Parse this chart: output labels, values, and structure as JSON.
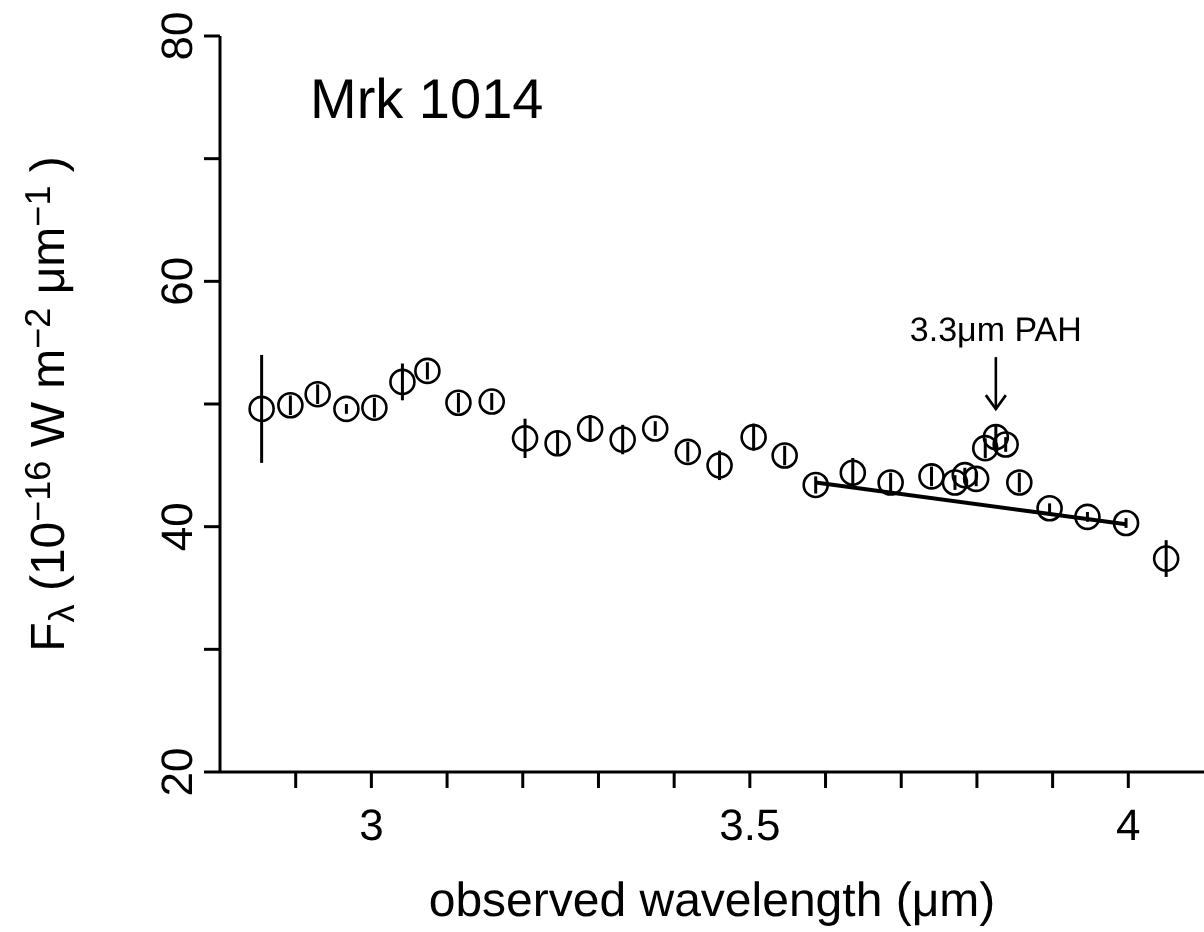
{
  "chart_data": {
    "type": "scatter",
    "title": "Mrk 1014",
    "xlabel": "observed wavelength (μm)",
    "ylabel": "F$_{λ}$ (10$^{−16}$ W m$^{−2}$ μm$^{−1}$)",
    "xlim": [
      2.8,
      4.1
    ],
    "ylim": [
      20,
      80
    ],
    "xticks": [
      {
        "value": 2.9,
        "label": null
      },
      {
        "value": 3,
        "label": "3"
      },
      {
        "value": 3.1,
        "label": null
      },
      {
        "value": 3.2,
        "label": null
      },
      {
        "value": 3.3,
        "label": null
      },
      {
        "value": 3.4,
        "label": null
      },
      3.5,
      {
        "value": 3.6,
        "label": null
      },
      {
        "value": 3.7,
        "label": null
      },
      {
        "value": 3.8,
        "label": null
      },
      {
        "value": 3.9,
        "label": null
      },
      {
        "value": 4,
        "label": "4"
      }
    ],
    "yticks": [
      20,
      {
        "value": 30,
        "label": null
      },
      40,
      {
        "value": 50,
        "label": null
      },
      60,
      {
        "value": 70,
        "label": null
      },
      80
    ],
    "marker": "circle",
    "grid": false,
    "annotations": [
      {
        "text": "3.3μm PAH",
        "x": 3.825,
        "y": 47.3
      }
    ],
    "series": [
      {
        "color": "#000000",
        "x": [
          2.855,
          2.893,
          2.929,
          2.967,
          3.004,
          3.041,
          3.074,
          3.115,
          3.159,
          3.203,
          3.246,
          3.289,
          3.332,
          3.375,
          3.418,
          3.46,
          3.505,
          3.546,
          3.587,
          3.636,
          3.686,
          3.74,
          3.771,
          3.784,
          3.799,
          3.811,
          3.825,
          3.838,
          3.856,
          3.896,
          3.946,
          3.997,
          4.05
        ],
        "values": [
          49.6,
          49.9,
          50.8,
          49.6,
          49.7,
          51.8,
          52.7,
          50.1,
          50.2,
          47.2,
          46.8,
          48.0,
          47.1,
          48.0,
          46.1,
          45.0,
          47.3,
          45.8,
          43.4,
          44.4,
          43.6,
          44.1,
          43.6,
          44.2,
          43.9,
          46.4,
          47.3,
          46.7,
          43.6,
          41.5,
          40.8,
          40.3,
          37.4
        ],
        "errors": [
          4.4,
          0.8,
          0.8,
          0.4,
          0.8,
          1.5,
          0.7,
          0.8,
          0.7,
          1.6,
          1.0,
          1.1,
          1.2,
          0.6,
          0.8,
          1.2,
          1.1,
          0.8,
          0.7,
          1.2,
          0.8,
          0.8,
          0.6,
          0.6,
          0.6,
          0.8,
          0.9,
          0.6,
          0.8,
          0.4,
          0.4,
          0.4,
          1.5
        ]
      },
      {
        "type": "line",
        "color": "#000000",
        "marker": "none",
        "x": [
          3.587,
          3.997
        ],
        "values": [
          43.6,
          40.2
        ]
      }
    ]
  }
}
